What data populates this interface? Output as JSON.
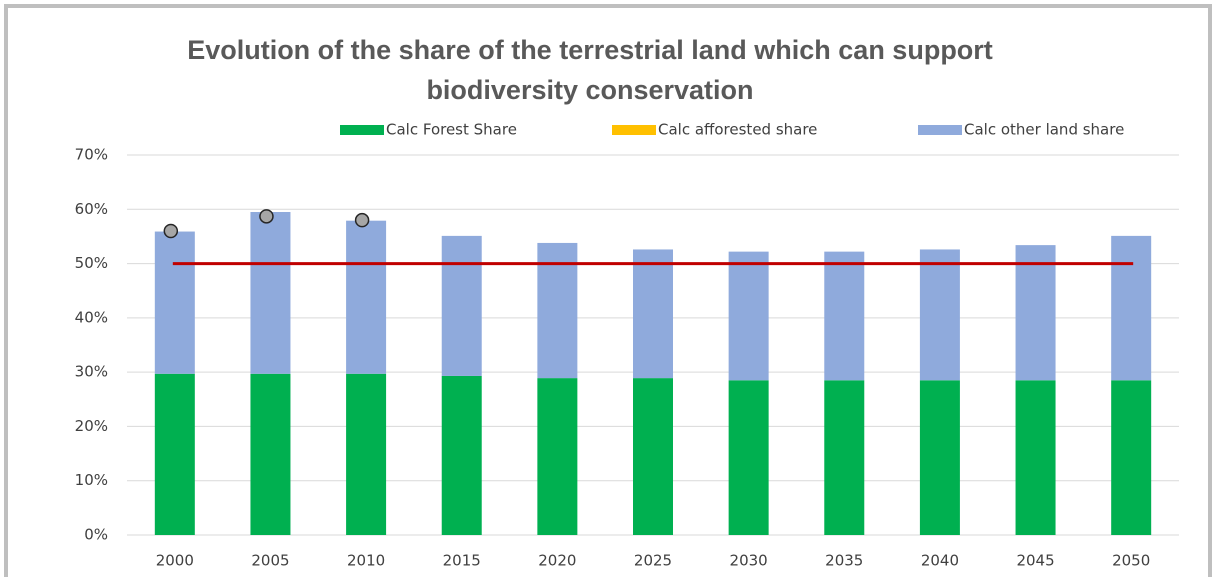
{
  "chart_data": {
    "type": "bar",
    "stacked": true,
    "title": "Evolution of the share of the terrestrial land which can support biodiversity conservation",
    "categories": [
      "2000",
      "2005",
      "2010",
      "2015",
      "2020",
      "2025",
      "2030",
      "2035",
      "2040",
      "2045",
      "2050"
    ],
    "series": [
      {
        "name": "Calc Forest Share",
        "color": "#00b050",
        "values": [
          29.7,
          29.7,
          29.7,
          29.3,
          28.9,
          28.9,
          28.5,
          28.5,
          28.5,
          28.5,
          28.5
        ]
      },
      {
        "name": "Calc afforested share",
        "color": "#ffc000",
        "values": [
          0,
          0,
          0,
          0,
          0,
          0,
          0,
          0,
          0,
          0,
          0
        ]
      },
      {
        "name": "Calc other land share",
        "color": "#8faadc",
        "values": [
          26.2,
          29.8,
          28.2,
          25.8,
          24.9,
          23.7,
          23.7,
          23.7,
          24.1,
          24.9,
          26.6
        ]
      }
    ],
    "points": {
      "color": "#a6a6a6",
      "values": [
        56,
        58.7,
        58,
        null,
        null,
        null,
        null,
        null,
        null,
        null,
        null
      ]
    },
    "reference_line": {
      "value": 50,
      "color": "#c00000"
    },
    "ylim": [
      0,
      70
    ],
    "yticks": [
      {
        "value": 0,
        "label": "0%"
      },
      {
        "value": 10,
        "label": "10%"
      },
      {
        "value": 20,
        "label": "20%"
      },
      {
        "value": 30,
        "label": "30%"
      },
      {
        "value": 40,
        "label": "40%"
      },
      {
        "value": 50,
        "label": "50%"
      },
      {
        "value": 60,
        "label": "60%"
      },
      {
        "value": 70,
        "label": "70%"
      }
    ],
    "grid": true,
    "legend": "top"
  }
}
